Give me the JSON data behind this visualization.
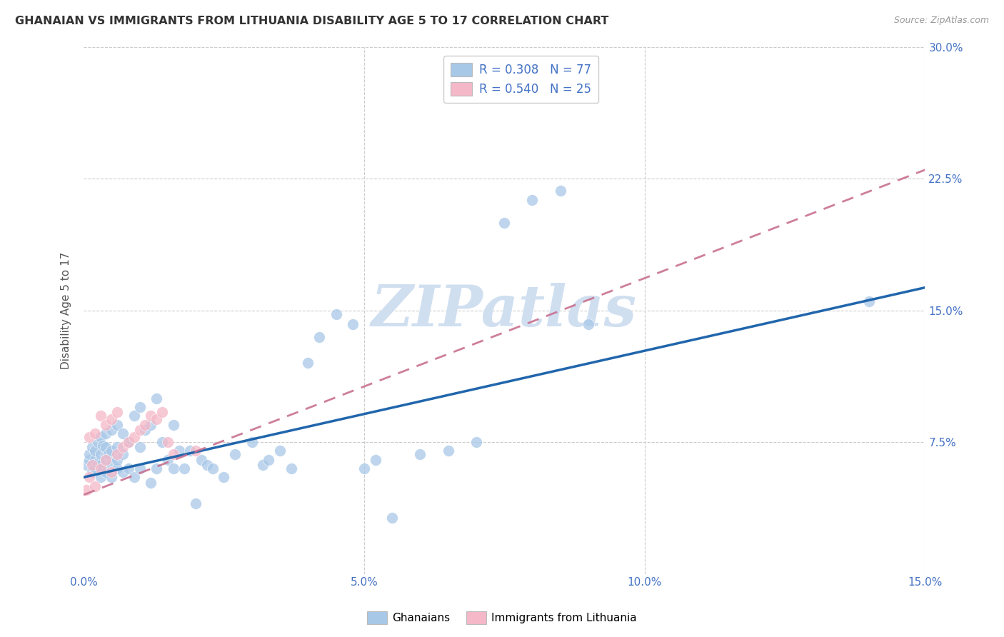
{
  "title": "GHANAIAN VS IMMIGRANTS FROM LITHUANIA DISABILITY AGE 5 TO 17 CORRELATION CHART",
  "source": "Source: ZipAtlas.com",
  "ylabel": "Disability Age 5 to 17",
  "xlim": [
    0.0,
    0.15
  ],
  "ylim": [
    0.0,
    0.3
  ],
  "xticks": [
    0.0,
    0.05,
    0.1,
    0.15
  ],
  "xtick_labels": [
    "0.0%",
    "5.0%",
    "10.0%",
    "15.0%"
  ],
  "yticks": [
    0.0,
    0.075,
    0.15,
    0.225,
    0.3
  ],
  "ytick_labels": [
    "",
    "7.5%",
    "15.0%",
    "22.5%",
    "30.0%"
  ],
  "legend_labels": [
    "Ghanaians",
    "Immigrants from Lithuania"
  ],
  "R_ghanaian": 0.308,
  "N_ghanaian": 77,
  "R_lithuania": 0.54,
  "N_lithuania": 25,
  "blue_color": "#a8c8e8",
  "pink_color": "#f4b8c8",
  "blue_line_color": "#2166ac",
  "pink_line_color": "#c87090",
  "title_color": "#333333",
  "axis_label_color": "#4472c4",
  "tick_color": "#4472c4",
  "watermark_color": "#d0dff0",
  "ghanaian_x": [
    0.0005,
    0.001,
    0.001,
    0.0015,
    0.0015,
    0.002,
    0.002,
    0.002,
    0.0025,
    0.0025,
    0.003,
    0.003,
    0.003,
    0.003,
    0.0035,
    0.0035,
    0.004,
    0.004,
    0.004,
    0.004,
    0.0045,
    0.005,
    0.005,
    0.005,
    0.005,
    0.006,
    0.006,
    0.006,
    0.006,
    0.007,
    0.007,
    0.007,
    0.008,
    0.008,
    0.009,
    0.009,
    0.01,
    0.01,
    0.01,
    0.011,
    0.012,
    0.012,
    0.013,
    0.013,
    0.014,
    0.015,
    0.016,
    0.016,
    0.017,
    0.018,
    0.019,
    0.02,
    0.021,
    0.022,
    0.023,
    0.025,
    0.027,
    0.03,
    0.032,
    0.033,
    0.035,
    0.037,
    0.04,
    0.042,
    0.045,
    0.048,
    0.05,
    0.052,
    0.055,
    0.06,
    0.065,
    0.07,
    0.075,
    0.08,
    0.085,
    0.09,
    0.14
  ],
  "ghanaian_y": [
    0.062,
    0.065,
    0.068,
    0.058,
    0.072,
    0.06,
    0.065,
    0.07,
    0.063,
    0.075,
    0.055,
    0.062,
    0.068,
    0.078,
    0.06,
    0.073,
    0.058,
    0.065,
    0.072,
    0.08,
    0.068,
    0.055,
    0.063,
    0.07,
    0.082,
    0.06,
    0.065,
    0.072,
    0.085,
    0.058,
    0.068,
    0.08,
    0.06,
    0.075,
    0.055,
    0.09,
    0.06,
    0.072,
    0.095,
    0.082,
    0.052,
    0.085,
    0.06,
    0.1,
    0.075,
    0.065,
    0.06,
    0.085,
    0.07,
    0.06,
    0.07,
    0.04,
    0.065,
    0.062,
    0.06,
    0.055,
    0.068,
    0.075,
    0.062,
    0.065,
    0.07,
    0.06,
    0.12,
    0.135,
    0.148,
    0.142,
    0.06,
    0.065,
    0.032,
    0.068,
    0.07,
    0.075,
    0.2,
    0.213,
    0.218,
    0.142,
    0.155
  ],
  "lithuania_x": [
    0.0005,
    0.001,
    0.001,
    0.0015,
    0.002,
    0.002,
    0.003,
    0.003,
    0.004,
    0.004,
    0.005,
    0.005,
    0.006,
    0.006,
    0.007,
    0.008,
    0.009,
    0.01,
    0.011,
    0.012,
    0.013,
    0.014,
    0.015,
    0.016,
    0.02
  ],
  "lithuania_y": [
    0.048,
    0.055,
    0.078,
    0.062,
    0.05,
    0.08,
    0.06,
    0.09,
    0.065,
    0.085,
    0.058,
    0.088,
    0.068,
    0.092,
    0.072,
    0.075,
    0.078,
    0.082,
    0.085,
    0.09,
    0.088,
    0.092,
    0.075,
    0.068,
    0.07
  ],
  "blue_trendline": [
    0.0,
    0.055,
    0.15,
    0.163
  ],
  "pink_trendline": [
    0.0,
    0.045,
    0.15,
    0.23
  ]
}
